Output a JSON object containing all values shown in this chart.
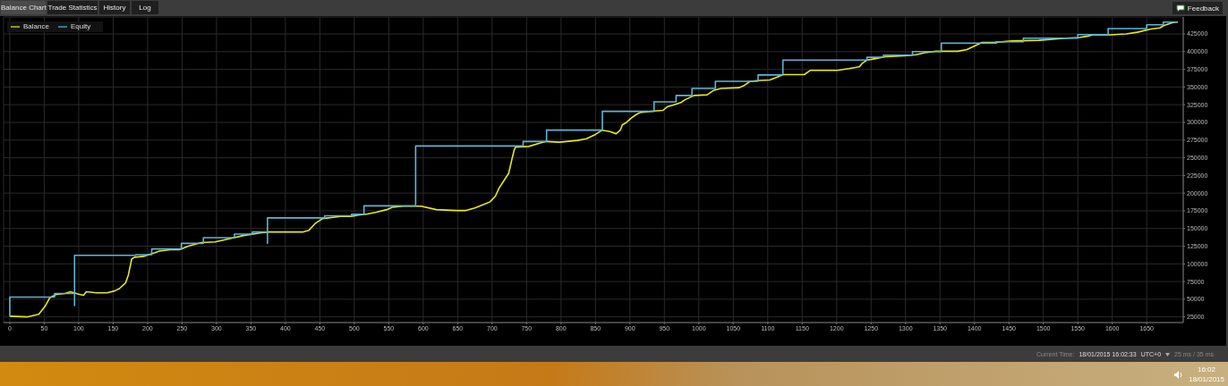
{
  "chart_data": {
    "type": "line",
    "legend": "top left",
    "grid": true,
    "marker": "none",
    "line_style": "solid",
    "xlim": [
      -9,
      1703
    ],
    "ylim": [
      17000,
      449000
    ],
    "xticks": [
      0,
      50,
      100,
      150,
      200,
      250,
      300,
      350,
      400,
      450,
      500,
      550,
      600,
      650,
      700,
      750,
      800,
      850,
      900,
      950,
      1000,
      1050,
      1100,
      1150,
      1200,
      1250,
      1300,
      1350,
      1400,
      1450,
      1500,
      1550,
      1600,
      1650
    ],
    "yticks": [
      25000,
      50000,
      75000,
      100000,
      125000,
      150000,
      175000,
      200000,
      225000,
      250000,
      275000,
      300000,
      325000,
      350000,
      375000,
      400000,
      425000
    ],
    "series": [
      {
        "name": "Balance",
        "color": "#e8e81c",
        "x": [
          0,
          25,
          42,
          51,
          58,
          68,
          80,
          88,
          100,
          107,
          111,
          126,
          141,
          152,
          159,
          168,
          172,
          177,
          181,
          194,
          210,
          217,
          233,
          246,
          259,
          278,
          298,
          317,
          339,
          363,
          376,
          389,
          402,
          425,
          434,
          443,
          454,
          480,
          495,
          506,
          519,
          532,
          547,
          555,
          571,
          584,
          597,
          619,
          649,
          662,
          675,
          688,
          697,
          705,
          710,
          720,
          724,
          729,
          732,
          734,
          753,
          770,
          779,
          798,
          824,
          837,
          850,
          860,
          871,
          880,
          886,
          889,
          895,
          902,
          909,
          915,
          935,
          948,
          954,
          963,
          974,
          980,
          993,
          1012,
          1021,
          1032,
          1058,
          1065,
          1074,
          1084,
          1103,
          1114,
          1122,
          1142,
          1153,
          1162,
          1201,
          1218,
          1233,
          1237,
          1244,
          1253,
          1272,
          1298,
          1315,
          1331,
          1344,
          1376,
          1389,
          1402,
          1411,
          1428,
          1454,
          1493,
          1532,
          1552,
          1565,
          1571,
          1597,
          1620,
          1636,
          1656,
          1669,
          1675,
          1688,
          1695
        ],
        "values": [
          26000,
          25000,
          28700,
          39700,
          52000,
          57000,
          58000,
          60500,
          57000,
          55600,
          60500,
          59000,
          59000,
          61700,
          65000,
          73000,
          84000,
          107000,
          109400,
          110600,
          115500,
          118000,
          120000,
          120000,
          125000,
          130000,
          131000,
          135000,
          140000,
          143600,
          145000,
          145000,
          145000,
          145000,
          147300,
          157000,
          164000,
          167000,
          167000,
          169000,
          170500,
          173000,
          176600,
          180000,
          181600,
          181600,
          181600,
          176600,
          175400,
          175400,
          179000,
          184000,
          187700,
          196000,
          207000,
          222000,
          228000,
          249000,
          261000,
          265000,
          266000,
          271000,
          273000,
          272000,
          274500,
          277000,
          283000,
          289000,
          287000,
          284000,
          289000,
          296500,
          300000,
          306000,
          311000,
          314000,
          316000,
          317000,
          322000,
          324600,
          328000,
          332000,
          338000,
          339000,
          345000,
          348000,
          349000,
          351600,
          357700,
          359000,
          360000,
          364000,
          367500,
          367500,
          367500,
          373600,
          373600,
          376000,
          378500,
          383400,
          388000,
          389500,
          393000,
          394000,
          395600,
          399000,
          400500,
          400500,
          403000,
          409000,
          413000,
          413000,
          415000,
          416000,
          419000,
          420000,
          422000,
          423700,
          423700,
          425000,
          427400,
          432000,
          433500,
          437000,
          441000,
          442000
        ]
      },
      {
        "name": "Equity",
        "color": "#5fb4d8",
        "x": [
          0,
          0,
          65,
          65,
          94,
          94,
          94,
          183,
          183,
          206,
          206,
          249,
          249,
          281,
          281,
          326,
          326,
          352,
          352,
          374,
          374,
          374,
          457,
          457,
          496,
          496,
          514,
          514,
          589,
          589,
          745,
          745,
          779,
          779,
          860,
          860,
          935,
          935,
          967,
          967,
          990,
          990,
          1024,
          1024,
          1086,
          1086,
          1122,
          1122,
          1244,
          1244,
          1268,
          1268,
          1310,
          1310,
          1352,
          1352,
          1432,
          1432,
          1471,
          1471,
          1550,
          1550,
          1594,
          1594,
          1650,
          1650,
          1674,
          1674,
          1695
        ],
        "values": [
          26000,
          53000,
          53000,
          58000,
          58000,
          41000,
          112000,
          112000,
          113000,
          113000,
          121000,
          121000,
          129000,
          129000,
          137000,
          137000,
          142000,
          142000,
          145000,
          145000,
          129000,
          165000,
          165000,
          168000,
          168000,
          170000,
          170000,
          182000,
          182000,
          266600,
          266600,
          273000,
          273000,
          289000,
          289000,
          315600,
          315600,
          329000,
          329000,
          338000,
          338000,
          348000,
          348000,
          358000,
          358000,
          367000,
          367000,
          388000,
          388000,
          392000,
          392000,
          395000,
          395000,
          400000,
          400000,
          412000,
          412000,
          414000,
          414000,
          419000,
          419000,
          424000,
          424000,
          432600,
          432600,
          438000,
          438000,
          441700,
          441700
        ]
      }
    ],
    "annotations": [
      "Balance Chart",
      "Trade Statistics",
      "History",
      "Log",
      "Feedback",
      "Current Time:",
      "18/01/2015 16:02:33",
      "UTC+0",
      "25 ms / 35 ms",
      "16:02",
      "18/01/2015"
    ]
  }
}
